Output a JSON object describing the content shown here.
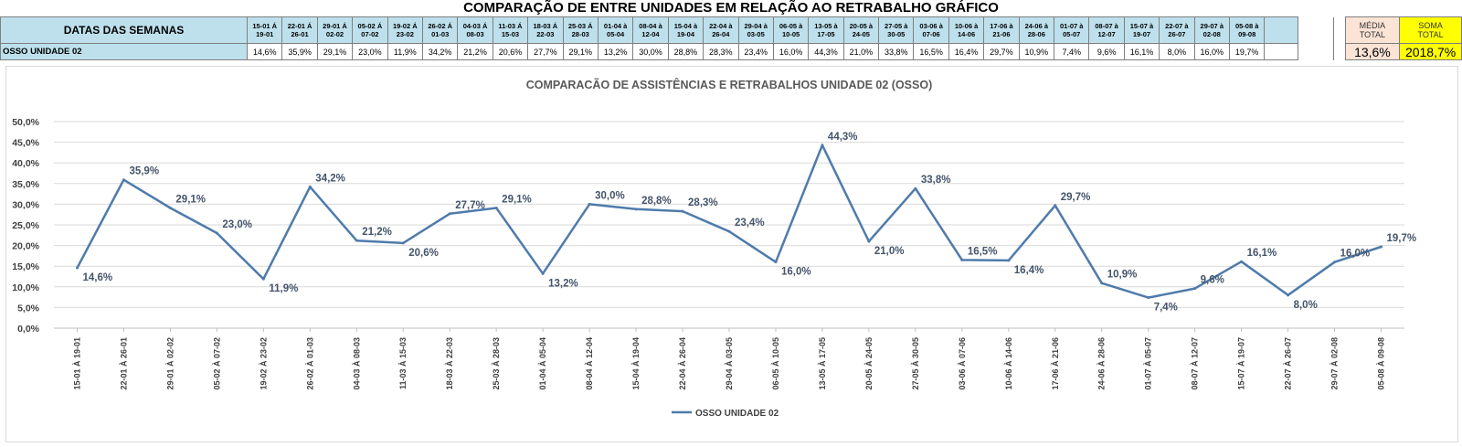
{
  "page_title": "COMPARAÇÃO DE ENTRE UNIDADES EM RELAÇÃO AO RETRABALHO GRÁFICO",
  "table": {
    "header_label": "DATAS DAS SEMANAS",
    "row_label": "OSSO UNIDADE 02",
    "weeks": [
      {
        "top": "15-01 Á",
        "bottom": "19-01"
      },
      {
        "top": "22-01 Á",
        "bottom": "26-01"
      },
      {
        "top": "29-01 Á",
        "bottom": "02-02"
      },
      {
        "top": "05-02 Á",
        "bottom": "07-02"
      },
      {
        "top": "19-02 Á",
        "bottom": "23-02"
      },
      {
        "top": "26-02 Á",
        "bottom": "01-03"
      },
      {
        "top": "04-03 Á",
        "bottom": "08-03"
      },
      {
        "top": "11-03 Á",
        "bottom": "15-03"
      },
      {
        "top": "18-03 Á",
        "bottom": "22-03"
      },
      {
        "top": "25-03 Á",
        "bottom": "28-03"
      },
      {
        "top": "01-04 à",
        "bottom": "05-04"
      },
      {
        "top": "08-04 à",
        "bottom": "12-04"
      },
      {
        "top": "15-04 à",
        "bottom": "19-04"
      },
      {
        "top": "22-04 à",
        "bottom": "26-04"
      },
      {
        "top": "29-04 à",
        "bottom": "03-05"
      },
      {
        "top": "06-05 à",
        "bottom": "10-05"
      },
      {
        "top": "13-05 à",
        "bottom": "17-05"
      },
      {
        "top": "20-05 à",
        "bottom": "24-05"
      },
      {
        "top": "27-05 à",
        "bottom": "30-05"
      },
      {
        "top": "03-06 à",
        "bottom": "07-06"
      },
      {
        "top": "10-06 à",
        "bottom": "14-06"
      },
      {
        "top": "17-06 à",
        "bottom": "21-06"
      },
      {
        "top": "24-06 à",
        "bottom": "28-06"
      },
      {
        "top": "01-07 à",
        "bottom": "05-07"
      },
      {
        "top": "08-07 à",
        "bottom": "12-07"
      },
      {
        "top": "15-07 à",
        "bottom": "19-07"
      },
      {
        "top": "22-07 à",
        "bottom": "26-07"
      },
      {
        "top": "29-07 à",
        "bottom": "02-08"
      },
      {
        "top": "05-08 à",
        "bottom": "09-08"
      }
    ],
    "values": [
      "14,6%",
      "35,9%",
      "29,1%",
      "23,0%",
      "11,9%",
      "34,2%",
      "21,2%",
      "20,6%",
      "27,7%",
      "29,1%",
      "13,2%",
      "30,0%",
      "28,8%",
      "28,3%",
      "23,4%",
      "16,0%",
      "44,3%",
      "21,0%",
      "33,8%",
      "16,5%",
      "16,4%",
      "29,7%",
      "10,9%",
      "7,4%",
      "9,6%",
      "16,1%",
      "8,0%",
      "16,0%",
      "19,7%"
    ],
    "media_header_1": "MÉDIA",
    "media_header_2": "TOTAL",
    "media_value": "13,6%",
    "soma_header_1": "SOMA",
    "soma_header_2": "TOTAL",
    "soma_value": "2018,7%",
    "colors": {
      "header_bg": "#bde0ec",
      "media_bg": "#fbe3d6",
      "soma_bg": "#ffff00"
    }
  },
  "chart_data": {
    "type": "line",
    "title": "COMPARACÃO DE ASSISTÊNCIAS E RETRABALHOS UNIDADE 02  (OSSO)",
    "xlabel": "",
    "ylabel": "",
    "ylim": [
      0,
      50
    ],
    "y_ticks": [
      "0,0%",
      "5,0%",
      "10,0%",
      "15,0%",
      "20,0%",
      "25,0%",
      "30,0%",
      "35,0%",
      "40,0%",
      "45,0%",
      "50,0%"
    ],
    "grid": true,
    "legend_position": "bottom",
    "categories": [
      "15-01 À 19-01",
      "22-01 À 26-01",
      "29-01 À 02-02",
      "05-02 À 07-02",
      "19-02 À 23-02",
      "26-02 À 01-03",
      "04-03 À 08-03",
      "11-03 À 15-03",
      "18-03 À 22-03",
      "25-03 À 28-03",
      "01-04 À 05-04",
      "08-04 À 12-04",
      "15-04 À 19-04",
      "22-04 À 26-04",
      "29-04 À 03-05",
      "06-05 À 10-05",
      "13-05 À 17-05",
      "20-05 À 24-05",
      "27-05 À 30-05",
      "03-06 À 07-06",
      "10-06 À 14-06",
      "17-06 À 21-06",
      "24-06 À 28-06",
      "01-07 À 05-07",
      "08-07 À 12-07",
      "15-07 À 19-07",
      "22-07 À 26-07",
      "29-07 À 02-08",
      "05-08 À 09-08"
    ],
    "series": [
      {
        "name": "OSSO UNIDADE 02",
        "color": "#4f7bab",
        "values": [
          14.6,
          35.9,
          29.1,
          23.0,
          11.9,
          34.2,
          21.2,
          20.6,
          27.7,
          29.1,
          13.2,
          30.0,
          28.8,
          28.3,
          23.4,
          16.0,
          44.3,
          21.0,
          33.8,
          16.5,
          16.4,
          29.7,
          10.9,
          7.4,
          9.6,
          16.1,
          8.0,
          16.0,
          19.7
        ],
        "labels": [
          "14,6%",
          "35,9%",
          "29,1%",
          "23,0%",
          "11,9%",
          "34,2%",
          "21,2%",
          "20,6%",
          "27,7%",
          "29,1%",
          "13,2%",
          "30,0%",
          "28,8%",
          "28,3%",
          "23,4%",
          "16,0%",
          "44,3%",
          "21,0%",
          "33,8%",
          "16,5%",
          "16,4%",
          "29,7%",
          "10,9%",
          "7,4%",
          "9,6%",
          "16,1%",
          "8,0%",
          "16,0%",
          "19,7%"
        ]
      }
    ]
  }
}
